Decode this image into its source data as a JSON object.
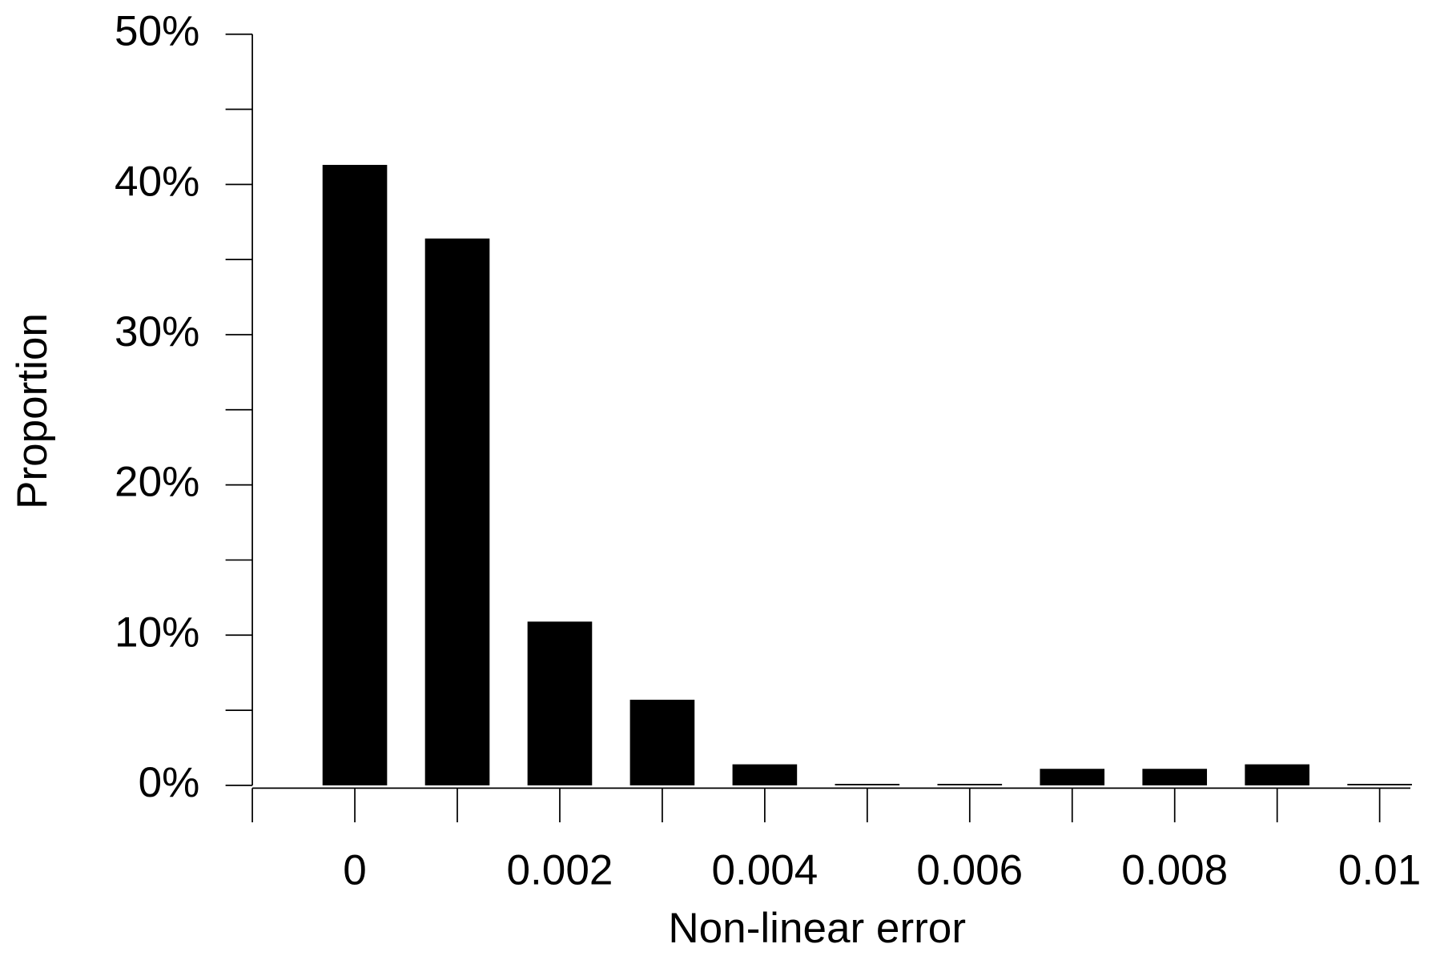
{
  "chart_data": {
    "type": "bar",
    "x_label": "Non-linear error",
    "y_label": "Proportion",
    "x": [
      0,
      0.001,
      0.002,
      0.003,
      0.004,
      0.005,
      0.006,
      0.007,
      0.008,
      0.009,
      0.01
    ],
    "values": [
      41.3,
      36.4,
      10.9,
      5.7,
      1.4,
      0.1,
      0.1,
      1.1,
      1.1,
      1.4,
      0.1
    ],
    "color": "#000000",
    "xlim": [
      -0.001,
      0.0103
    ],
    "xticks": [
      0,
      0.002,
      0.004,
      0.006,
      0.008,
      0.01
    ],
    "x_minor_ticks": [
      -0.001,
      0.001,
      0.003,
      0.005,
      0.007,
      0.009
    ],
    "ylim": [
      0,
      50
    ],
    "yticks": [
      {
        "value": 0,
        "label": "0%"
      },
      {
        "value": 10,
        "label": "10%"
      },
      {
        "value": 20,
        "label": "20%"
      },
      {
        "value": 30,
        "label": "30%"
      },
      {
        "value": 40,
        "label": "40%"
      },
      {
        "value": 50,
        "label": "50%"
      }
    ],
    "y_minor_ticks": [
      5,
      15,
      25,
      35,
      45
    ],
    "grid": false
  }
}
